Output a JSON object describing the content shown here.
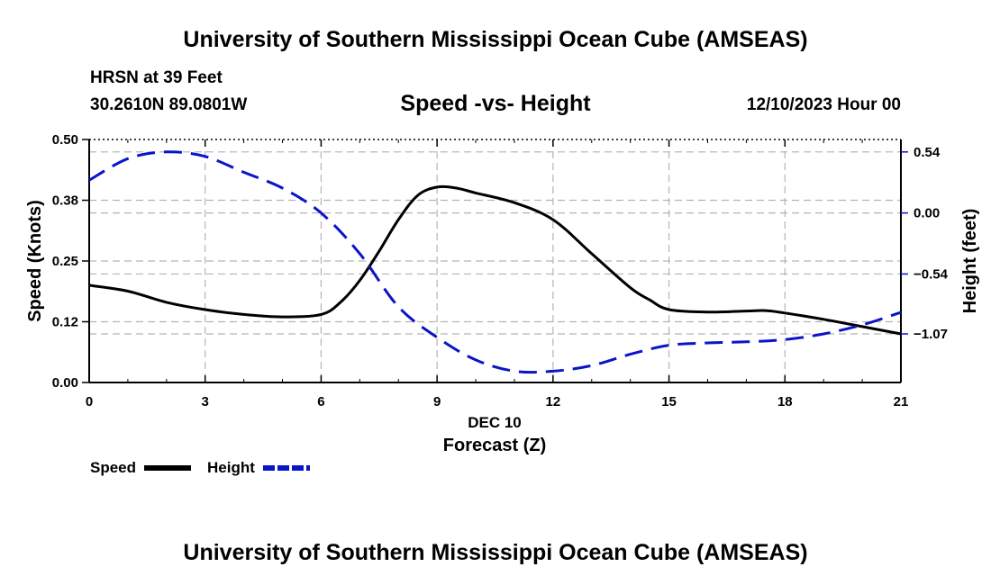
{
  "page": {
    "title_top": "University of Southern Mississippi Ocean Cube (AMSEAS)",
    "station": "HRSN at 39 Feet",
    "coords": "30.2610N  89.0801W",
    "date_hour": "12/10/2023 Hour 00",
    "title_bottom": "University of Southern Mississippi Ocean Cube (AMSEAS)"
  },
  "legend": {
    "speed_label": "Speed",
    "height_label": "Height"
  },
  "colors": {
    "speed": "#000000",
    "height": "#0a14c8",
    "grid": "#b4b4b4"
  },
  "chart_data": {
    "type": "line",
    "title": "Speed -vs- Height",
    "xlabel": "Forecast (Z)",
    "xlabel_date": "DEC 10",
    "ylabel": "Speed (Knots)",
    "y2label": "Height (feet)",
    "xlim": [
      0,
      21
    ],
    "ylim": [
      0.0,
      0.5
    ],
    "y2lim": [
      -1.5,
      0.65
    ],
    "x_ticks": [
      0,
      3,
      6,
      9,
      12,
      15,
      18,
      21
    ],
    "x_tick_labels": [
      "0",
      "3",
      "6",
      "9",
      "12",
      "15",
      "18",
      "21"
    ],
    "y_ticks": [
      0.0,
      0.125,
      0.25,
      0.375,
      0.5
    ],
    "y_tick_labels": [
      "0.00",
      "0.12",
      "0.25",
      "0.38",
      "0.50"
    ],
    "y2_ticks": [
      0.54,
      0.0,
      -0.54,
      -1.07
    ],
    "y2_tick_labels": [
      "0.54",
      "0.00",
      "−0.54",
      "−1.07"
    ],
    "grid": true,
    "series": [
      {
        "name": "Speed",
        "axis": "left",
        "style": "solid",
        "x": [
          0,
          1,
          2,
          3,
          4,
          5,
          6,
          6.5,
          7,
          7.5,
          8,
          8.5,
          9,
          9.5,
          10,
          11,
          12,
          13,
          14,
          14.5,
          15,
          16,
          17,
          17.5,
          18,
          19,
          20,
          21
        ],
        "values": [
          0.2,
          0.188,
          0.165,
          0.15,
          0.14,
          0.135,
          0.14,
          0.165,
          0.21,
          0.27,
          0.335,
          0.385,
          0.402,
          0.4,
          0.39,
          0.37,
          0.335,
          0.265,
          0.195,
          0.17,
          0.15,
          0.145,
          0.147,
          0.148,
          0.143,
          0.13,
          0.115,
          0.1
        ]
      },
      {
        "name": "Height",
        "axis": "right",
        "style": "dashed",
        "x": [
          0,
          1,
          2,
          3,
          4,
          5,
          6,
          7,
          8,
          9,
          10,
          11,
          12,
          13,
          14,
          15,
          16,
          17,
          18,
          19,
          20,
          21
        ],
        "values": [
          0.29,
          0.48,
          0.54,
          0.5,
          0.36,
          0.22,
          0.0,
          -0.36,
          -0.83,
          -1.1,
          -1.3,
          -1.4,
          -1.4,
          -1.35,
          -1.25,
          -1.17,
          -1.15,
          -1.14,
          -1.12,
          -1.07,
          -0.99,
          -0.88
        ]
      }
    ]
  }
}
